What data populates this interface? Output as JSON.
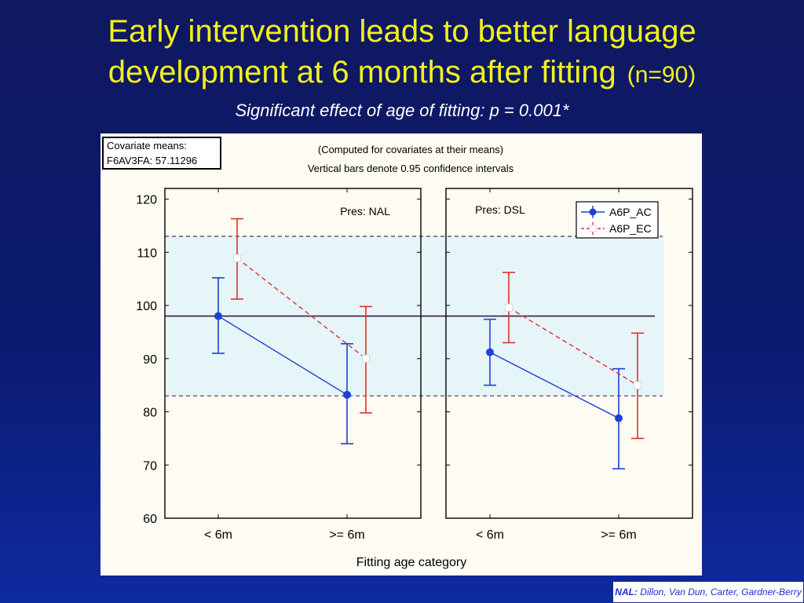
{
  "slide": {
    "title_line1": "Early intervention leads to better language",
    "title_line2": "development at 6 months after fitting",
    "title_n": "(n=90)",
    "subtitle": "Significant effect of age of fitting: p = 0.001*"
  },
  "covariate": {
    "line1": "Covariate means:",
    "line2": "F6AV3FA: 57.11296"
  },
  "notes": {
    "computed": "(Computed for covariates at their means)",
    "vertical_bars": "Vertical bars denote 0.95 confidence intervals"
  },
  "footer": {
    "bold": "NAL:",
    "rest": " Dillon, Van Dun, Carter, Gardner-Berry"
  },
  "chart_data": {
    "type": "line",
    "xlabel": "Fitting age category",
    "ylim": [
      60,
      122
    ],
    "yticks": [
      60,
      70,
      80,
      90,
      100,
      110,
      120
    ],
    "categories": [
      "< 6m",
      ">= 6m"
    ],
    "reference_lines": {
      "mean": 98,
      "band_lower": 83,
      "band_upper": 113
    },
    "colors": {
      "AC": "#1f3fd8",
      "EC": "#e03030",
      "mean": "#3a1a4a",
      "band_line": "#5a2a7a",
      "band_fill": "#e6f5f7"
    },
    "panels": [
      {
        "label": "Pres: NAL",
        "series": [
          {
            "name": "A6P_AC",
            "values": [
              98,
              83.2
            ],
            "ci_low": [
              91,
              74
            ],
            "ci_high": [
              105.2,
              92.8
            ]
          },
          {
            "name": "A6P_EC",
            "values": [
              108.9,
              90
            ],
            "ci_low": [
              101.2,
              79.8
            ],
            "ci_high": [
              116.3,
              99.8
            ]
          }
        ]
      },
      {
        "label": "Pres: DSL",
        "series": [
          {
            "name": "A6P_AC",
            "values": [
              91.2,
              78.8
            ],
            "ci_low": [
              85,
              69.3
            ],
            "ci_high": [
              97.4,
              88.1
            ]
          },
          {
            "name": "A6P_EC",
            "values": [
              99.6,
              85
            ],
            "ci_low": [
              93,
              75
            ],
            "ci_high": [
              106.2,
              94.8
            ]
          }
        ]
      }
    ]
  }
}
